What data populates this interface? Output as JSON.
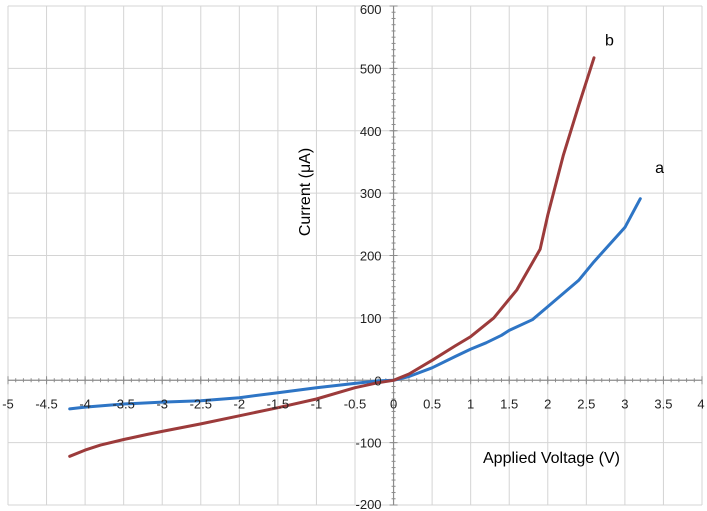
{
  "chart_data": {
    "type": "line",
    "xlabel": "Applied Voltage (V)",
    "ylabel": "Current (μA)",
    "xlim": [
      -5,
      4
    ],
    "ylim": [
      -200,
      600
    ],
    "x_ticks": [
      -5,
      -4.5,
      -4,
      -3.5,
      -3,
      -2.5,
      -2,
      -1.5,
      -1,
      -0.5,
      0,
      0.5,
      1,
      1.5,
      2,
      2.5,
      3,
      3.5,
      4
    ],
    "x_tick_labels": [
      "-5",
      "-4.5",
      "-4",
      "-3.5",
      "-3",
      "-2.5",
      "-2",
      "-1.5",
      "-1",
      "-0.5",
      "0",
      "0.5",
      "1",
      "1.5",
      "2",
      "2.5",
      "3",
      "3.5",
      "4"
    ],
    "y_ticks": [
      -200,
      -100,
      0,
      100,
      200,
      300,
      400,
      500,
      600
    ],
    "y_tick_labels": [
      "-200",
      "-100",
      "0",
      "100",
      "200",
      "300",
      "400",
      "500",
      "600"
    ],
    "grid": true,
    "series": [
      {
        "name": "a",
        "color": "#2e75c5",
        "x": [
          -4.2,
          -4.0,
          -3.5,
          -3.0,
          -2.5,
          -2.0,
          -1.5,
          -1.0,
          -0.5,
          -0.2,
          0.0,
          0.2,
          0.5,
          0.8,
          1.0,
          1.2,
          1.4,
          1.5,
          1.8,
          2.0,
          2.4,
          2.6,
          3.0,
          3.2
        ],
        "y": [
          -46,
          -43,
          -38,
          -35,
          -33,
          -28,
          -20,
          -12,
          -5,
          -1,
          0,
          6,
          20,
          38,
          50,
          60,
          72,
          80,
          97,
          118,
          160,
          190,
          245,
          291
        ]
      },
      {
        "name": "b",
        "color": "#9c3b3b",
        "x": [
          -4.2,
          -4.0,
          -3.8,
          -3.5,
          -3.2,
          -3.0,
          -2.5,
          -2.0,
          -1.5,
          -1.0,
          -0.5,
          -0.2,
          0.0,
          0.2,
          0.5,
          0.8,
          1.0,
          1.3,
          1.6,
          1.9,
          2.0,
          2.2,
          2.4,
          2.6
        ],
        "y": [
          -122,
          -112,
          -104,
          -95,
          -87,
          -82,
          -70,
          -57,
          -44,
          -30,
          -12,
          -4,
          0,
          10,
          32,
          55,
          70,
          100,
          145,
          210,
          265,
          360,
          440,
          517
        ]
      }
    ],
    "series_labels": [
      {
        "text": "a",
        "x": 3.45,
        "y": 332
      },
      {
        "text": "b",
        "x": 2.8,
        "y": 537
      }
    ]
  }
}
